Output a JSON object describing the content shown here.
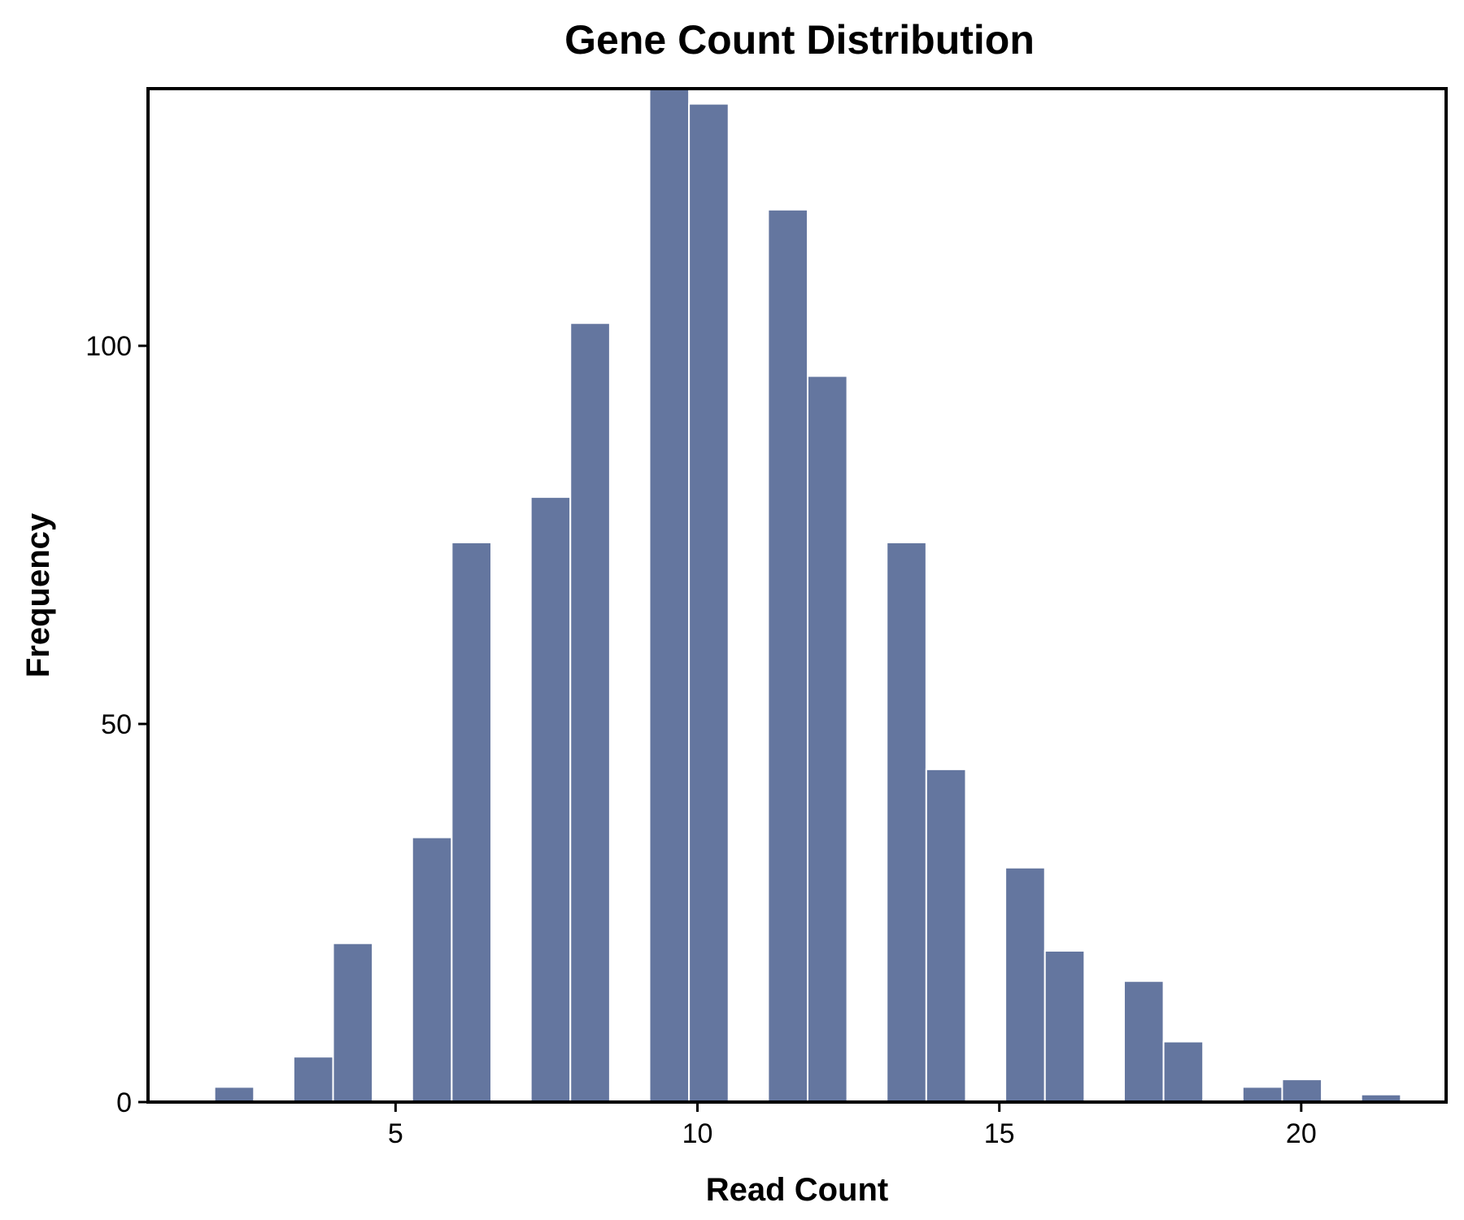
{
  "chart_data": {
    "type": "bar",
    "title": "Gene Count Distribution",
    "xlabel": "Read Count",
    "ylabel": "Frequency",
    "xlim": [
      0.9,
      22.4
    ],
    "ylim": [
      0,
      134
    ],
    "x_ticks": [
      5,
      10,
      15,
      20
    ],
    "y_ticks": [
      0,
      50,
      100
    ],
    "bar_color": "#64769f",
    "bar_edge_color": "#ffffff",
    "grid": false,
    "legend": "none",
    "bins": [
      {
        "x0": 2.0,
        "x1": 2.655,
        "value": 2
      },
      {
        "x0": 3.31,
        "x1": 3.965,
        "value": 6
      },
      {
        "x0": 3.965,
        "x1": 4.62,
        "value": 21
      },
      {
        "x0": 5.275,
        "x1": 5.93,
        "value": 35
      },
      {
        "x0": 5.93,
        "x1": 6.585,
        "value": 74
      },
      {
        "x0": 7.24,
        "x1": 7.895,
        "value": 80
      },
      {
        "x0": 7.895,
        "x1": 8.55,
        "value": 103
      },
      {
        "x0": 9.205,
        "x1": 9.86,
        "value": 134
      },
      {
        "x0": 9.86,
        "x1": 10.515,
        "value": 132
      },
      {
        "x0": 11.17,
        "x1": 11.825,
        "value": 118
      },
      {
        "x0": 11.825,
        "x1": 12.48,
        "value": 96
      },
      {
        "x0": 13.135,
        "x1": 13.79,
        "value": 74
      },
      {
        "x0": 13.79,
        "x1": 14.445,
        "value": 44
      },
      {
        "x0": 15.1,
        "x1": 15.755,
        "value": 31
      },
      {
        "x0": 15.755,
        "x1": 16.41,
        "value": 20
      },
      {
        "x0": 17.065,
        "x1": 17.72,
        "value": 16
      },
      {
        "x0": 17.72,
        "x1": 18.375,
        "value": 8
      },
      {
        "x0": 19.03,
        "x1": 19.685,
        "value": 2
      },
      {
        "x0": 19.685,
        "x1": 20.34,
        "value": 3
      },
      {
        "x0": 20.995,
        "x1": 21.65,
        "value": 1
      }
    ]
  }
}
